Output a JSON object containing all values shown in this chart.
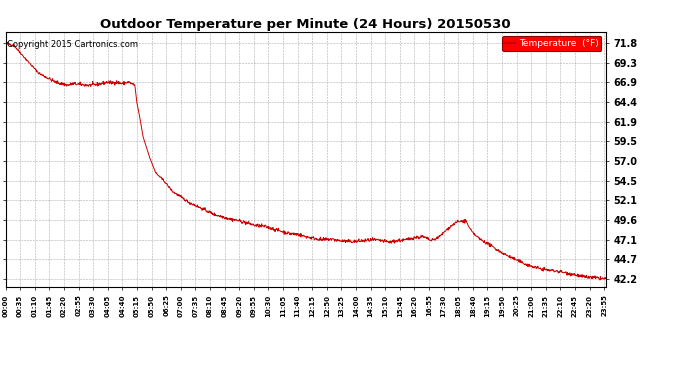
{
  "title": "Outdoor Temperature per Minute (24 Hours) 20150530",
  "copyright_text": "Copyright 2015 Cartronics.com",
  "legend_label": "Temperature  (°F)",
  "line_color": "#cc0000",
  "background_color": "#ffffff",
  "grid_color": "#999999",
  "yticks": [
    42.2,
    44.7,
    47.1,
    49.6,
    52.1,
    54.5,
    57.0,
    59.5,
    61.9,
    64.4,
    66.9,
    69.3,
    71.8
  ],
  "ylim": [
    41.2,
    73.2
  ],
  "xtick_labels": [
    "00:00",
    "00:35",
    "01:10",
    "01:45",
    "02:20",
    "02:55",
    "03:30",
    "04:05",
    "04:40",
    "05:15",
    "05:50",
    "06:25",
    "07:00",
    "07:35",
    "08:10",
    "08:45",
    "09:20",
    "09:55",
    "10:30",
    "11:05",
    "11:40",
    "12:15",
    "12:50",
    "13:25",
    "14:00",
    "14:35",
    "15:10",
    "15:45",
    "16:20",
    "16:55",
    "17:30",
    "18:05",
    "18:40",
    "19:15",
    "19:50",
    "20:25",
    "21:00",
    "21:35",
    "22:10",
    "22:45",
    "23:20",
    "23:55"
  ],
  "total_minutes": 1440,
  "key_points": [
    [
      0,
      71.8
    ],
    [
      20,
      71.5
    ],
    [
      45,
      70.0
    ],
    [
      80,
      68.0
    ],
    [
      120,
      66.9
    ],
    [
      150,
      66.5
    ],
    [
      160,
      66.7
    ],
    [
      200,
      66.5
    ],
    [
      220,
      66.6
    ],
    [
      245,
      66.9
    ],
    [
      255,
      66.8
    ],
    [
      265,
      66.9
    ],
    [
      280,
      66.7
    ],
    [
      295,
      66.9
    ],
    [
      310,
      66.5
    ],
    [
      315,
      64.3
    ],
    [
      320,
      63.0
    ],
    [
      330,
      60.0
    ],
    [
      345,
      57.5
    ],
    [
      360,
      55.5
    ],
    [
      380,
      54.5
    ],
    [
      400,
      53.2
    ],
    [
      420,
      52.5
    ],
    [
      440,
      51.8
    ],
    [
      460,
      51.3
    ],
    [
      480,
      50.8
    ],
    [
      500,
      50.3
    ],
    [
      520,
      50.0
    ],
    [
      540,
      49.7
    ],
    [
      560,
      49.5
    ],
    [
      580,
      49.2
    ],
    [
      600,
      48.9
    ],
    [
      620,
      48.8
    ],
    [
      640,
      48.5
    ],
    [
      660,
      48.2
    ],
    [
      680,
      47.9
    ],
    [
      700,
      47.8
    ],
    [
      720,
      47.5
    ],
    [
      740,
      47.3
    ],
    [
      760,
      47.1
    ],
    [
      780,
      47.2
    ],
    [
      800,
      47.0
    ],
    [
      820,
      46.9
    ],
    [
      840,
      46.9
    ],
    [
      860,
      47.0
    ],
    [
      880,
      47.1
    ],
    [
      900,
      47.0
    ],
    [
      920,
      46.8
    ],
    [
      940,
      47.0
    ],
    [
      960,
      47.1
    ],
    [
      980,
      47.4
    ],
    [
      1000,
      47.5
    ],
    [
      1010,
      47.3
    ],
    [
      1020,
      47.0
    ],
    [
      1030,
      47.2
    ],
    [
      1040,
      47.5
    ],
    [
      1050,
      48.0
    ],
    [
      1060,
      48.5
    ],
    [
      1080,
      49.3
    ],
    [
      1100,
      49.5
    ],
    [
      1105,
      49.4
    ],
    [
      1110,
      48.8
    ],
    [
      1120,
      48.0
    ],
    [
      1130,
      47.5
    ],
    [
      1140,
      47.1
    ],
    [
      1160,
      46.5
    ],
    [
      1180,
      45.8
    ],
    [
      1200,
      45.2
    ],
    [
      1220,
      44.7
    ],
    [
      1240,
      44.2
    ],
    [
      1260,
      43.8
    ],
    [
      1280,
      43.5
    ],
    [
      1300,
      43.3
    ],
    [
      1320,
      43.2
    ],
    [
      1340,
      43.0
    ],
    [
      1360,
      42.8
    ],
    [
      1380,
      42.5
    ],
    [
      1400,
      42.4
    ],
    [
      1420,
      42.3
    ],
    [
      1439,
      42.2
    ]
  ]
}
